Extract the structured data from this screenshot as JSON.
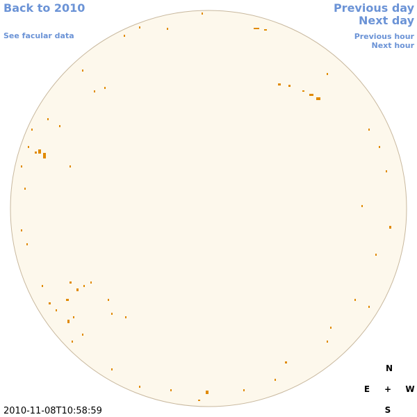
{
  "nav": {
    "back": "Back to 2010",
    "facular": "See facular data",
    "previous_day": "Previous day",
    "next_day": "Next day",
    "previous_hour": "Previous hour",
    "next_hour": "Next hour"
  },
  "compass": {
    "north": "N",
    "east": "E",
    "center": "+",
    "west": "W",
    "south": "S"
  },
  "timestamp": "2010-11-08T10:58:59"
}
